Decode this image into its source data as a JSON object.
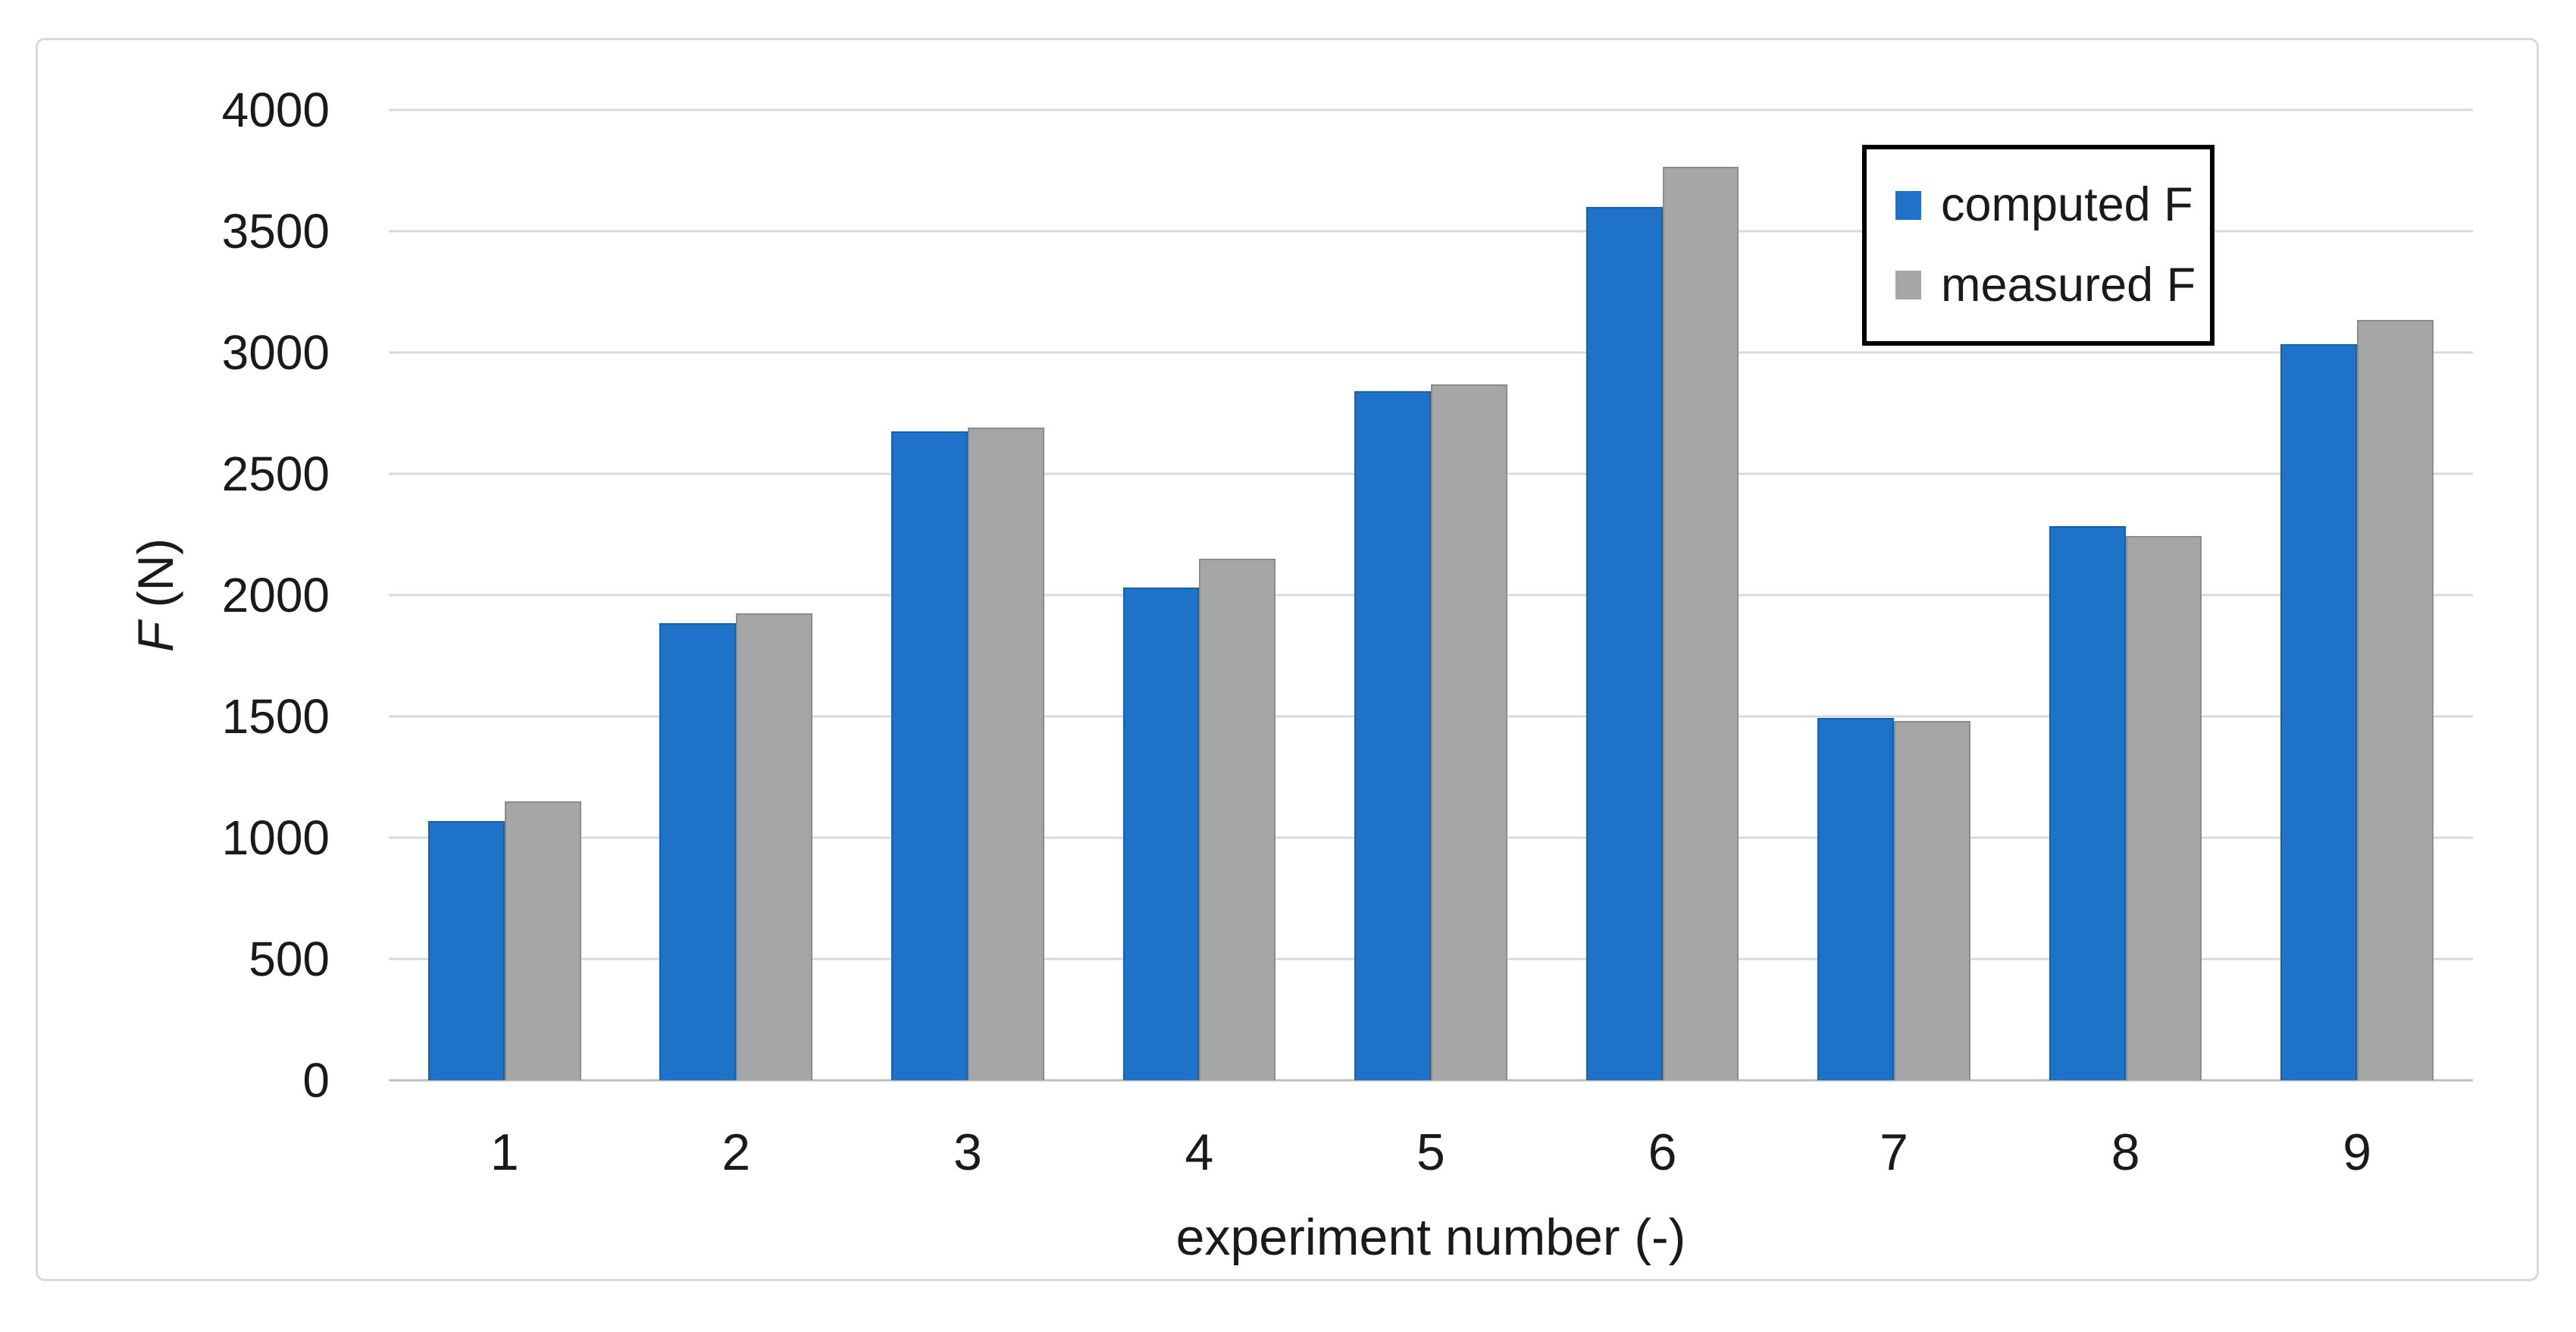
{
  "chart_data": {
    "type": "bar",
    "title": "",
    "xlabel": "experiment number (-)",
    "ylabel": "F (N)",
    "ylabel_italic": "F",
    "ylabel_rest": " (N)",
    "categories": [
      "1",
      "2",
      "3",
      "4",
      "5",
      "6",
      "7",
      "8",
      "9"
    ],
    "series": [
      {
        "name": "computed F",
        "color": "#1E73C8",
        "border_color": "#1562A9",
        "values": [
          1070,
          1885,
          2675,
          2030,
          2840,
          3600,
          1495,
          2285,
          3035
        ]
      },
      {
        "name": "measured F",
        "color": "#A6A6A6",
        "border_color": "#8C8C8C",
        "values": [
          1150,
          1925,
          2690,
          2150,
          2870,
          3765,
          1480,
          2245,
          3135
        ]
      }
    ],
    "ylim": [
      0,
      4000
    ],
    "ytick_step": 500,
    "yticks": [
      "0",
      "500",
      "1000",
      "1500",
      "2000",
      "2500",
      "3000",
      "3500",
      "4000"
    ],
    "grid": true,
    "legend_position": "top-right",
    "colors": {
      "grid": "#D9D9D9",
      "axis_line": "#BFBFBF",
      "frame_border": "#D9D9D9",
      "legend_border": "#000000",
      "text": "#1A1A1A",
      "background": "#FFFFFF"
    }
  }
}
